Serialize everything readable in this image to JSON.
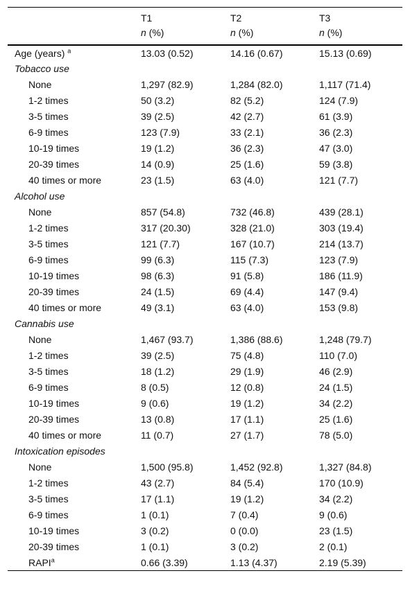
{
  "header": {
    "col1": {
      "label": "T1",
      "sub_n": "n",
      "sub_pct": " (%)"
    },
    "col2": {
      "label": "T2",
      "sub_n": "n",
      "sub_pct": " (%)"
    },
    "col3": {
      "label": "T3",
      "sub_n": "n",
      "sub_pct": " (%)"
    }
  },
  "age": {
    "label": "Age (years) ",
    "sup": "a",
    "t1": "13.03 (0.52)",
    "t2": "14.16 (0.67)",
    "t3": "15.13 (0.69)"
  },
  "tobacco": {
    "title": "Tobacco use",
    "rows": [
      {
        "label": "None",
        "t1": "1,297 (82.9)",
        "t2": "1,284 (82.0)",
        "t3": "1,117 (71.4)"
      },
      {
        "label": "1-2 times",
        "t1": "50 (3.2)",
        "t2": "82 (5.2)",
        "t3": "124 (7.9)"
      },
      {
        "label": "3-5 times",
        "t1": "39 (2.5)",
        "t2": "42 (2.7)",
        "t3": "61 (3.9)"
      },
      {
        "label": "6-9 times",
        "t1": "123 (7.9)",
        "t2": "33 (2.1)",
        "t3": "36 (2.3)"
      },
      {
        "label": "10-19 times",
        "t1": "19 (1.2)",
        "t2": "36 (2.3)",
        "t3": "47 (3.0)"
      },
      {
        "label": "20-39 times",
        "t1": "14 (0.9)",
        "t2": "25 (1.6)",
        "t3": "59 (3.8)"
      },
      {
        "label": "40 times or more",
        "t1": "23 (1.5)",
        "t2": "63 (4.0)",
        "t3": "121 (7.7)"
      }
    ]
  },
  "alcohol": {
    "title": "Alcohol use",
    "rows": [
      {
        "label": "None",
        "t1": "857 (54.8)",
        "t2": "732 (46.8)",
        "t3": "439 (28.1)"
      },
      {
        "label": "1-2 times",
        "t1": "317 (20.30)",
        "t2": "328 (21.0)",
        "t3": "303 (19.4)"
      },
      {
        "label": "3-5 times",
        "t1": "121 (7.7)",
        "t2": "167 (10.7)",
        "t3": "214 (13.7)"
      },
      {
        "label": "6-9 times",
        "t1": "99 (6.3)",
        "t2": "115 (7.3)",
        "t3": "123 (7.9)"
      },
      {
        "label": "10-19 times",
        "t1": "98 (6.3)",
        "t2": "91 (5.8)",
        "t3": "186 (11.9)"
      },
      {
        "label": "20-39 times",
        "t1": "24 (1.5)",
        "t2": "69 (4.4)",
        "t3": "147 (9.4)"
      },
      {
        "label": "40 times or more",
        "t1": "49 (3.1)",
        "t2": "63 (4.0)",
        "t3": "153 (9.8)"
      }
    ]
  },
  "cannabis": {
    "title": "Cannabis use",
    "rows": [
      {
        "label": "None",
        "t1": "1,467 (93.7)",
        "t2": "1,386 (88.6)",
        "t3": "1,248 (79.7)"
      },
      {
        "label": "1-2 times",
        "t1": "39 (2.5)",
        "t2": "75 (4.8)",
        "t3": "110 (7.0)"
      },
      {
        "label": "3-5 times",
        "t1": "18 (1.2)",
        "t2": "29 (1.9)",
        "t3": "46 (2.9)"
      },
      {
        "label": "6-9 times",
        "t1": "8 (0.5)",
        "t2": "12 (0.8)",
        "t3": "24 (1.5)"
      },
      {
        "label": "10-19 times",
        "t1": "9 (0.6)",
        "t2": "19 (1.2)",
        "t3": "34 (2.2)"
      },
      {
        "label": "20-39 times",
        "t1": "13 (0.8)",
        "t2": "17 (1.1)",
        "t3": "25 (1.6)"
      },
      {
        "label": "40 times or more",
        "t1": "11 (0.7)",
        "t2": "27 (1.7)",
        "t3": "78 (5.0)"
      }
    ]
  },
  "intoxication": {
    "title": "Intoxication episodes",
    "rows": [
      {
        "label": "None",
        "t1": "1,500 (95.8)",
        "t2": "1,452 (92.8)",
        "t3": "1,327 (84.8)"
      },
      {
        "label": "1-2 times",
        "t1": "43 (2.7)",
        "t2": "84 (5.4)",
        "t3": "170 (10.9)"
      },
      {
        "label": "3-5 times",
        "t1": "17 (1.1)",
        "t2": "19 (1.2)",
        "t3": "34 (2.2)"
      },
      {
        "label": "6-9 times",
        "t1": "1 (0.1)",
        "t2": "7 (0.4)",
        "t3": "9 (0.6)"
      },
      {
        "label": "10-19 times",
        "t1": "3 (0.2)",
        "t2": "0 (0.0)",
        "t3": "23 (1.5)"
      },
      {
        "label": "20-39 times",
        "t1": "1 (0.1)",
        "t2": "3 (0.2)",
        "t3": "2 (0.1)"
      }
    ]
  },
  "rapi": {
    "label": "RAPI",
    "sup": "a",
    "t1": "0.66 (3.39)",
    "t2": "1.13 (4.37)",
    "t3": "2.19 (5.39)"
  }
}
